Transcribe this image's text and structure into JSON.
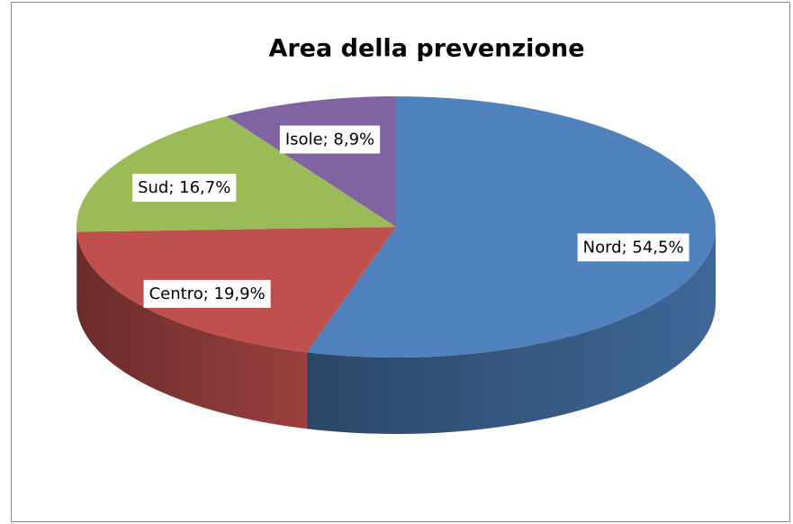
{
  "chart_data": {
    "type": "pie",
    "title": "Area della prevenzione",
    "values": [
      54.5,
      19.9,
      16.7,
      8.9
    ],
    "value_labels": [
      "Nord; 54,5%",
      "Centro; 19,9%",
      "Sud; 16,7%",
      "Isole; 8,9%"
    ],
    "colors": [
      "#4f81bd",
      "#c0504d",
      "#9bbb59",
      "#8064a2"
    ]
  }
}
